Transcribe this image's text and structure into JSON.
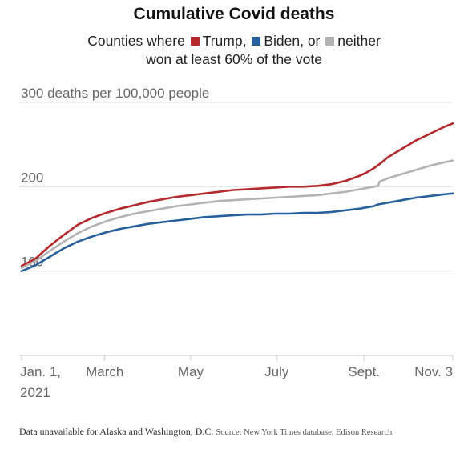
{
  "chart_data": {
    "type": "line",
    "title": "Cumulative Covid deaths",
    "subtitle": {
      "prefix": "Counties where",
      "trump": "Trump,",
      "biden": "Biden, or",
      "neither": "neither",
      "line2": "won at least 60% of the vote"
    },
    "ylabel_top": "300 deaths per 100,000 people",
    "yticks": [
      {
        "value": 100,
        "label": "100"
      },
      {
        "value": 200,
        "label": "200"
      },
      {
        "value": 300,
        "label": "300 deaths per 100,000 people"
      }
    ],
    "ylim": [
      0,
      300
    ],
    "xlim": [
      0,
      306
    ],
    "xticks": [
      {
        "day": 0,
        "label": "Jan. 1,",
        "label2": "2021"
      },
      {
        "day": 59,
        "label": "March"
      },
      {
        "day": 120,
        "label": "May"
      },
      {
        "day": 181,
        "label": "July"
      },
      {
        "day": 243,
        "label": "Sept."
      },
      {
        "day": 306,
        "label": "Nov. 3"
      }
    ],
    "grid": true,
    "legend": "inline in subtitle",
    "series": [
      {
        "name": "Trump",
        "color": "#b5282b",
        "points": [
          [
            0,
            106
          ],
          [
            10,
            115
          ],
          [
            20,
            130
          ],
          [
            30,
            143
          ],
          [
            40,
            155
          ],
          [
            50,
            163
          ],
          [
            60,
            169
          ],
          [
            70,
            174
          ],
          [
            80,
            178
          ],
          [
            90,
            182
          ],
          [
            100,
            185
          ],
          [
            110,
            188
          ],
          [
            120,
            190
          ],
          [
            130,
            192
          ],
          [
            140,
            194
          ],
          [
            150,
            196
          ],
          [
            160,
            197
          ],
          [
            170,
            198
          ],
          [
            180,
            199
          ],
          [
            190,
            200
          ],
          [
            200,
            200
          ],
          [
            210,
            201
          ],
          [
            220,
            203
          ],
          [
            230,
            207
          ],
          [
            240,
            213
          ],
          [
            245,
            217
          ],
          [
            250,
            222
          ],
          [
            255,
            228
          ],
          [
            260,
            235
          ],
          [
            270,
            245
          ],
          [
            280,
            255
          ],
          [
            290,
            263
          ],
          [
            300,
            271
          ],
          [
            306,
            275
          ]
        ]
      },
      {
        "name": "neither",
        "color": "#b3b3b3",
        "points": [
          [
            0,
            104
          ],
          [
            10,
            112
          ],
          [
            20,
            124
          ],
          [
            30,
            135
          ],
          [
            40,
            145
          ],
          [
            50,
            153
          ],
          [
            60,
            159
          ],
          [
            70,
            164
          ],
          [
            80,
            168
          ],
          [
            90,
            171
          ],
          [
            100,
            174
          ],
          [
            110,
            177
          ],
          [
            120,
            179
          ],
          [
            130,
            181
          ],
          [
            140,
            183
          ],
          [
            150,
            184
          ],
          [
            160,
            185
          ],
          [
            170,
            186
          ],
          [
            180,
            187
          ],
          [
            190,
            188
          ],
          [
            200,
            189
          ],
          [
            210,
            190
          ],
          [
            220,
            192
          ],
          [
            230,
            194
          ],
          [
            240,
            197
          ],
          [
            250,
            200
          ],
          [
            253,
            201
          ],
          [
            254,
            206
          ],
          [
            260,
            210
          ],
          [
            270,
            215
          ],
          [
            280,
            220
          ],
          [
            290,
            225
          ],
          [
            300,
            229
          ],
          [
            306,
            231
          ]
        ]
      },
      {
        "name": "Biden",
        "color": "#27609c",
        "points": [
          [
            0,
            100
          ],
          [
            10,
            107
          ],
          [
            20,
            117
          ],
          [
            30,
            127
          ],
          [
            40,
            135
          ],
          [
            50,
            141
          ],
          [
            60,
            146
          ],
          [
            70,
            150
          ],
          [
            80,
            153
          ],
          [
            90,
            156
          ],
          [
            100,
            158
          ],
          [
            110,
            160
          ],
          [
            120,
            162
          ],
          [
            130,
            164
          ],
          [
            140,
            165
          ],
          [
            150,
            166
          ],
          [
            160,
            167
          ],
          [
            170,
            167
          ],
          [
            180,
            168
          ],
          [
            190,
            168
          ],
          [
            200,
            169
          ],
          [
            210,
            169
          ],
          [
            220,
            170
          ],
          [
            230,
            172
          ],
          [
            240,
            174
          ],
          [
            250,
            177
          ],
          [
            253,
            179
          ],
          [
            260,
            181
          ],
          [
            270,
            184
          ],
          [
            280,
            187
          ],
          [
            290,
            189
          ],
          [
            300,
            191
          ],
          [
            306,
            192
          ]
        ]
      }
    ],
    "footnote": "Data unavailable for Alaska and Washington, D.C.",
    "source": "Source: New York Times database, Edison Research"
  }
}
